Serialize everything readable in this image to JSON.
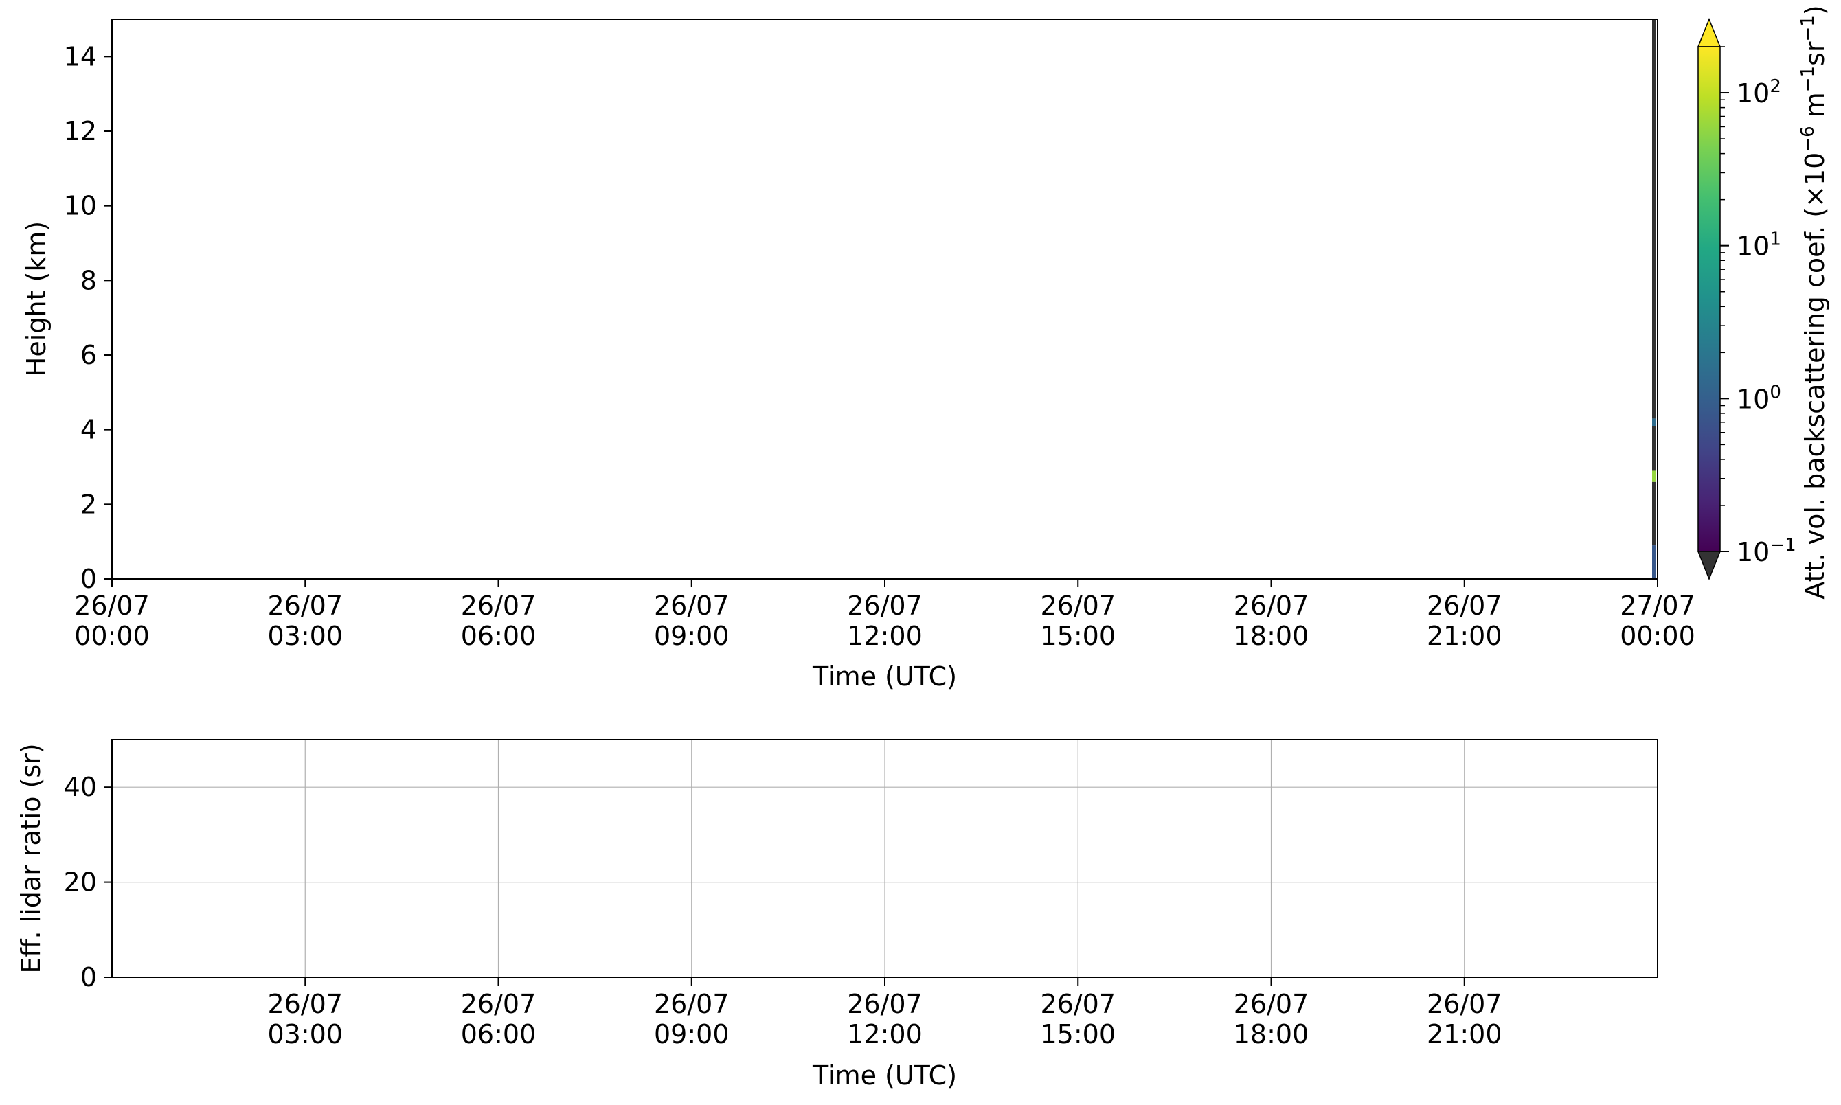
{
  "chart_data": [
    {
      "type": "heatmap",
      "panel": "top",
      "xlabel": "Time (UTC)",
      "ylabel": "Height (km)",
      "ylim": [
        0,
        15
      ],
      "yticks": [
        0,
        2,
        4,
        6,
        8,
        10,
        12,
        14
      ],
      "x_range": [
        "26/07 00:00",
        "27/07 00:00"
      ],
      "xticks": [
        {
          "hours": 0,
          "date": "26/07",
          "time": "00:00"
        },
        {
          "hours": 3,
          "date": "26/07",
          "time": "03:00"
        },
        {
          "hours": 6,
          "date": "26/07",
          "time": "06:00"
        },
        {
          "hours": 9,
          "date": "26/07",
          "time": "09:00"
        },
        {
          "hours": 12,
          "date": "26/07",
          "time": "12:00"
        },
        {
          "hours": 15,
          "date": "26/07",
          "time": "15:00"
        },
        {
          "hours": 18,
          "date": "26/07",
          "time": "18:00"
        },
        {
          "hours": 21,
          "date": "26/07",
          "time": "21:00"
        },
        {
          "hours": 24,
          "date": "27/07",
          "time": "00:00"
        }
      ],
      "grid": false,
      "data_note": "Data only in the last profile at 27/07 00:00; values near 2.8 km are high, others low.",
      "profile": {
        "time": "27/07 00:00",
        "segments": [
          {
            "height_from": 0.0,
            "height_to": 0.9,
            "value": 0.8
          },
          {
            "height_from": 0.9,
            "height_to": 2.6,
            "value": 0.05
          },
          {
            "height_from": 2.6,
            "height_to": 2.9,
            "value": 60
          },
          {
            "height_from": 2.9,
            "height_to": 4.1,
            "value": 0.05
          },
          {
            "height_from": 4.1,
            "height_to": 4.3,
            "value": 1.5
          },
          {
            "height_from": 4.3,
            "height_to": 15.0,
            "value": 0.05
          }
        ]
      },
      "colorbar": {
        "label_main": "Att. vol. backscattering coef. (×10",
        "label_exp1": "−6",
        "label_mid": " m",
        "label_exp2": "−1",
        "label_mid2": "sr",
        "label_exp3": "−1",
        "label_end": ")",
        "scale": "log",
        "range": [
          0.1,
          200
        ],
        "extend": "both",
        "colormap": "viridis",
        "under_color": "#333333",
        "over_color": "#fde725",
        "ticks": [
          {
            "value": 0.1,
            "base": "10",
            "exp": "−1"
          },
          {
            "value": 1,
            "base": "10",
            "exp": "0"
          },
          {
            "value": 10,
            "base": "10",
            "exp": "1"
          },
          {
            "value": 100,
            "base": "10",
            "exp": "2"
          }
        ]
      }
    },
    {
      "type": "line",
      "panel": "bottom",
      "xlabel": "Time (UTC)",
      "ylabel": "Eff. lidar ratio (sr)",
      "ylim": [
        0,
        50
      ],
      "yticks": [
        0,
        20,
        40
      ],
      "grid": true,
      "series": [],
      "xticks": [
        {
          "hours": 3,
          "date": "26/07",
          "time": "03:00"
        },
        {
          "hours": 6,
          "date": "26/07",
          "time": "06:00"
        },
        {
          "hours": 9,
          "date": "26/07",
          "time": "09:00"
        },
        {
          "hours": 12,
          "date": "26/07",
          "time": "12:00"
        },
        {
          "hours": 15,
          "date": "26/07",
          "time": "15:00"
        },
        {
          "hours": 18,
          "date": "26/07",
          "time": "18:00"
        },
        {
          "hours": 21,
          "date": "26/07",
          "time": "21:00"
        }
      ]
    }
  ]
}
